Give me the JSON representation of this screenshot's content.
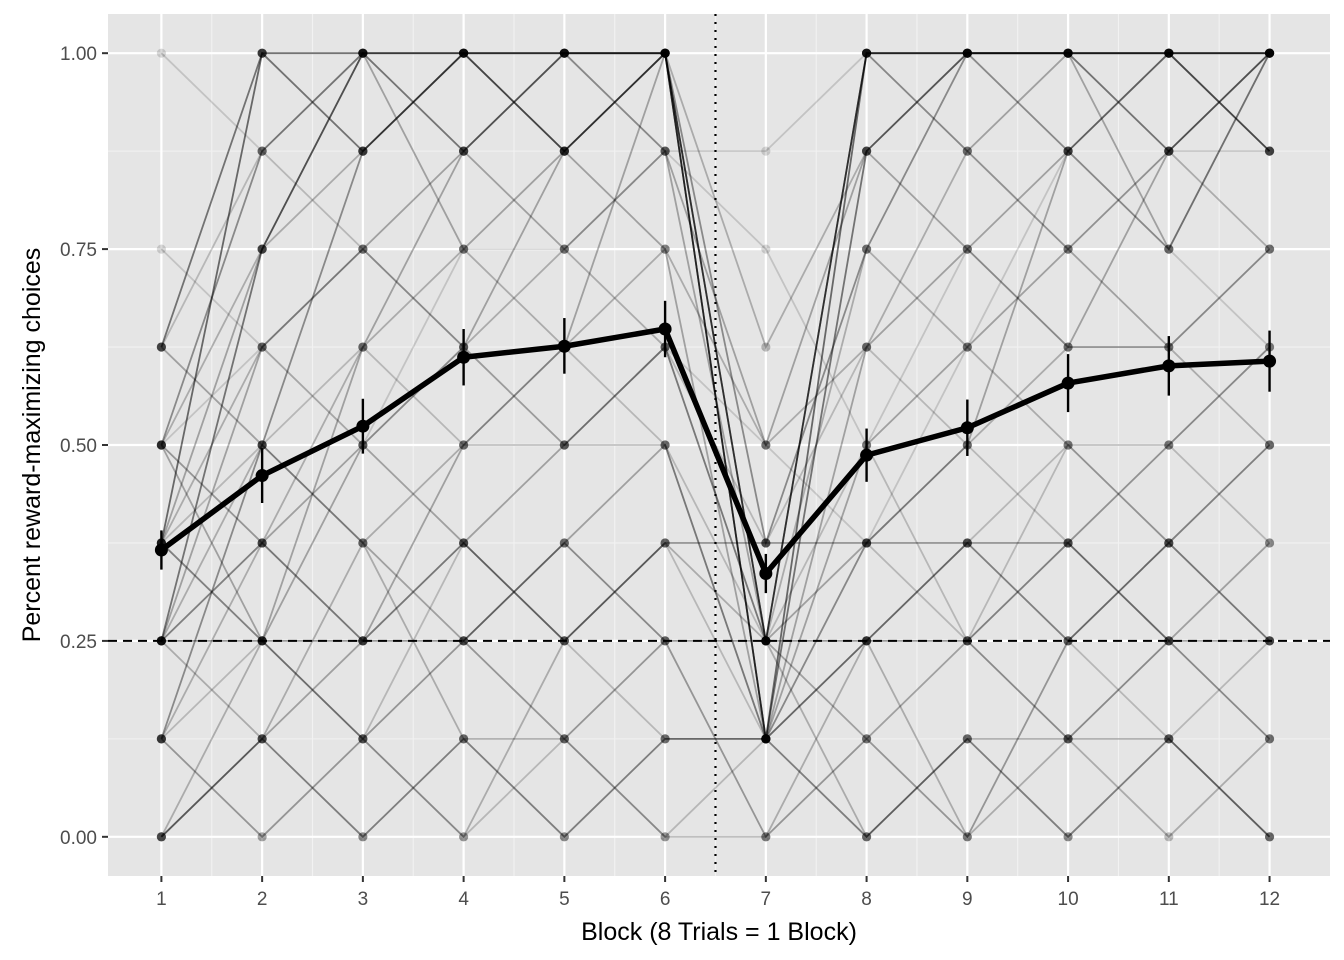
{
  "chart_data": {
    "type": "line",
    "xlabel": "Block (8 Trials = 1 Block)",
    "ylabel": "Percent reward-maximizing choices",
    "x": [
      1,
      2,
      3,
      4,
      5,
      6,
      7,
      8,
      9,
      10,
      11,
      12
    ],
    "x_tick_labels": [
      "1",
      "2",
      "3",
      "4",
      "5",
      "6",
      "7",
      "8",
      "9",
      "10",
      "11",
      "12"
    ],
    "y_ticks": [
      0,
      0.25,
      0.5,
      0.75,
      1
    ],
    "y_tick_labels": [
      "0.00",
      "0.25",
      "0.50",
      "0.75",
      "1.00"
    ],
    "xlim": [
      0.47,
      12.6
    ],
    "ylim": [
      -0.05,
      1.05
    ],
    "grid": true,
    "background": "#e5e5e5",
    "mean_series": {
      "values": [
        0.366,
        0.461,
        0.524,
        0.612,
        0.626,
        0.648,
        0.336,
        0.487,
        0.522,
        0.579,
        0.601,
        0.607
      ],
      "error_low": [
        0.341,
        0.426,
        0.489,
        0.576,
        0.591,
        0.612,
        0.311,
        0.453,
        0.486,
        0.542,
        0.563,
        0.568
      ],
      "error_high": [
        0.391,
        0.496,
        0.559,
        0.648,
        0.662,
        0.684,
        0.361,
        0.521,
        0.558,
        0.616,
        0.639,
        0.646
      ],
      "color": "#000000"
    },
    "reference_lines": [
      {
        "orientation": "horizontal",
        "value": 0.25,
        "style": "dashed"
      },
      {
        "orientation": "vertical",
        "value": 6.5,
        "style": "dotted"
      }
    ],
    "individual_series": [
      {
        "values": [
          0.375,
          1,
          1,
          1,
          1,
          1,
          0.125,
          1,
          1,
          1,
          1,
          1
        ],
        "alpha": 0.55
      },
      {
        "values": [
          0.25,
          0.75,
          1,
          1,
          1,
          1,
          0.25,
          1,
          1,
          1,
          1,
          1
        ],
        "alpha": 0.5
      },
      {
        "values": [
          0.625,
          1,
          0.875,
          1,
          0.875,
          1,
          0.125,
          0.875,
          1,
          1,
          0.875,
          1
        ],
        "alpha": 0.5
      },
      {
        "values": [
          0.5,
          0.875,
          1,
          0.875,
          1,
          1,
          0.25,
          1,
          1,
          0.875,
          1,
          0.875
        ],
        "alpha": 0.4
      },
      {
        "values": [
          0.125,
          0.5,
          0.875,
          1,
          0.875,
          1,
          0.375,
          0.75,
          1,
          1,
          1,
          1
        ],
        "alpha": 0.4
      },
      {
        "values": [
          0.25,
          0.625,
          0.75,
          0.875,
          1,
          0.875,
          0.25,
          1,
          0.875,
          1,
          0.75,
          1
        ],
        "alpha": 0.3
      },
      {
        "values": [
          0.375,
          0.75,
          1,
          0.75,
          0.875,
          1,
          0.125,
          0.625,
          0.75,
          0.875,
          1,
          0.875
        ],
        "alpha": 0.3
      },
      {
        "values": [
          0.5,
          0.25,
          0.625,
          0.875,
          0.75,
          0.875,
          0.5,
          0.875,
          0.75,
          0.625,
          0.875,
          1
        ],
        "alpha": 0.3
      },
      {
        "values": [
          0.25,
          0.375,
          0.5,
          0.625,
          0.875,
          0.75,
          0.125,
          0.5,
          0.625,
          0.75,
          0.625,
          0.75
        ],
        "alpha": 0.3
      },
      {
        "values": [
          0,
          0.125,
          0.25,
          0.5,
          0.625,
          1,
          0.25,
          0.375,
          0.5,
          0.875,
          0.75,
          1
        ],
        "alpha": 0.3
      },
      {
        "values": [
          0.625,
          0.5,
          0.375,
          0.25,
          0.375,
          0.5,
          0.125,
          0.25,
          0.375,
          0.25,
          0.375,
          0.5
        ],
        "alpha": 0.3
      },
      {
        "values": [
          0.375,
          0.25,
          0.5,
          0.375,
          0.5,
          0.625,
          0.25,
          0.125,
          0.25,
          0.375,
          0.25,
          0.375
        ],
        "alpha": 0.3
      },
      {
        "values": [
          0.125,
          0,
          0.125,
          0.25,
          0.125,
          0.25,
          0,
          0.125,
          0,
          0.25,
          0.375,
          0.25
        ],
        "alpha": 0.35
      },
      {
        "values": [
          0,
          0.125,
          0,
          0.125,
          0,
          0.125,
          0.125,
          0,
          0.125,
          0,
          0.125,
          0
        ],
        "alpha": 0.45
      },
      {
        "values": [
          0.25,
          0.25,
          0.25,
          0.25,
          0.375,
          0.25,
          0.25,
          0.25,
          0.25,
          0.125,
          0.25,
          0.125
        ],
        "alpha": 0.4
      },
      {
        "values": [
          0.5,
          0.375,
          0.25,
          0.375,
          0.25,
          0.375,
          0.375,
          0.375,
          0.375,
          0.375,
          0.25,
          0.25
        ],
        "alpha": 0.35
      },
      {
        "values": [
          0.375,
          0.625,
          0.75,
          0.625,
          0.75,
          0.625,
          0.25,
          0.75,
          0.625,
          0.5,
          0.5,
          0.625
        ],
        "alpha": 0.25
      },
      {
        "values": [
          0.25,
          0.5,
          0.375,
          0.5,
          0.5,
          0.5,
          0.125,
          0.375,
          0.5,
          0.625,
          0.625,
          0.5
        ],
        "alpha": 0.25
      },
      {
        "values": [
          0.125,
          0.375,
          0.625,
          0.75,
          0.625,
          0.75,
          0.5,
          0.625,
          0.875,
          0.75,
          0.875,
          0.75
        ],
        "alpha": 0.25
      },
      {
        "values": [
          0.5,
          0.75,
          0.875,
          1,
          1,
          1,
          0.625,
          0.875,
          1,
          1,
          1,
          0.875
        ],
        "alpha": 0.25
      },
      {
        "values": [
          0.375,
          0.5,
          0.625,
          0.5,
          0.625,
          0.5,
          0.25,
          0.5,
          0.25,
          0.5,
          0.375,
          0.5
        ],
        "alpha": 0.2
      },
      {
        "values": [
          0,
          0.25,
          0.125,
          0,
          0.25,
          0.375,
          0.25,
          0,
          0.125,
          0.125,
          0,
          0.125
        ],
        "alpha": 0.25
      },
      {
        "values": [
          0.25,
          0.125,
          0.375,
          0.125,
          0.125,
          0,
          0,
          0.25,
          0,
          0.125,
          0.125,
          0
        ],
        "alpha": 0.25
      },
      {
        "values": [
          0.125,
          0.25,
          0.125,
          0.375,
          0.25,
          0.125,
          0.125,
          0.375,
          0.25,
          0.375,
          0.5,
          0.375
        ],
        "alpha": 0.2
      },
      {
        "values": [
          0.625,
          0.875,
          0.75,
          0.625,
          0.5,
          0.625,
          0.375,
          0.625,
          0.5,
          0.375,
          0.5,
          0.625
        ],
        "alpha": 0.2
      },
      {
        "values": [
          0.75,
          0.625,
          0.5,
          0.75,
          0.75,
          0.875,
          0.75,
          0.5,
          0.75,
          0.625,
          0.625,
          0.75
        ],
        "alpha": 0.15
      },
      {
        "values": [
          1,
          0.875,
          1,
          0.875,
          1,
          0.875,
          0.875,
          1,
          0.875,
          0.75,
          0.875,
          0.875
        ],
        "alpha": 0.15
      },
      {
        "values": [
          0.25,
          0.375,
          0.25,
          0.375,
          0.25,
          0.375,
          0.125,
          0.25,
          0.375,
          0.5,
          0.375,
          0.25
        ],
        "alpha": 0.2
      },
      {
        "values": [
          0.5,
          0.625,
          0.5,
          0.625,
          0.5,
          0.625,
          0.5,
          0.375,
          0.625,
          0.875,
          0.75,
          0.625
        ],
        "alpha": 0.15
      },
      {
        "values": [
          0.375,
          0.25,
          0.125,
          0,
          0.125,
          0,
          0.125,
          0.25,
          0.375,
          0.25,
          0.125,
          0.25
        ],
        "alpha": 0.2
      }
    ]
  }
}
